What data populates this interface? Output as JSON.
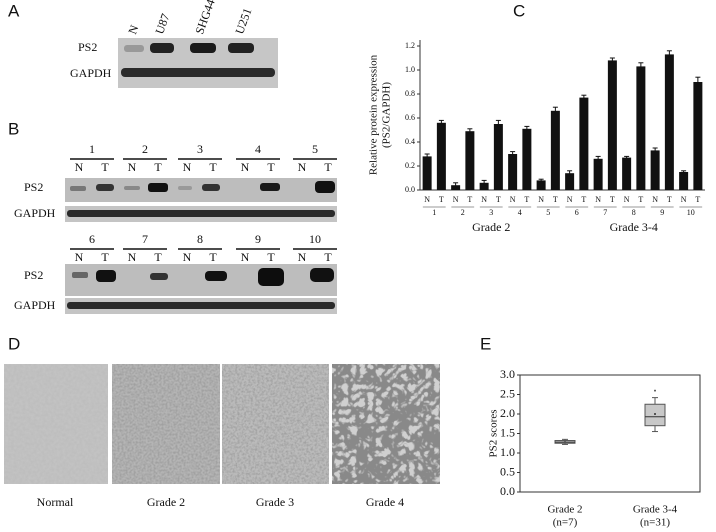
{
  "panels": {
    "a": {
      "letter": "A",
      "columns": [
        "N",
        "U87",
        "SHG44",
        "U251"
      ],
      "rows": [
        "PS2",
        "GAPDH"
      ]
    },
    "b": {
      "letter": "B",
      "top_samples": [
        "1",
        "2",
        "3",
        "4",
        "5"
      ],
      "bottom_samples": [
        "6",
        "7",
        "8",
        "9",
        "10"
      ],
      "lane_labels": [
        "N",
        "T"
      ],
      "rows": [
        "PS2",
        "GAPDH"
      ]
    },
    "c": {
      "letter": "C"
    },
    "d": {
      "letter": "D",
      "captions": [
        "Normal",
        "Grade 2",
        "Grade 3",
        "Grade 4"
      ]
    },
    "e": {
      "letter": "E"
    }
  },
  "chart_data": [
    {
      "type": "bar",
      "ylabel": [
        "Relative protein expression",
        "(PS2/GAPDH)"
      ],
      "categories": [
        "N",
        "T",
        "N",
        "T",
        "N",
        "T",
        "N",
        "T",
        "N",
        "T",
        "N",
        "T",
        "N",
        "T",
        "N",
        "T",
        "N",
        "T",
        "N",
        "T"
      ],
      "values": [
        0.28,
        0.56,
        0.04,
        0.49,
        0.06,
        0.55,
        0.3,
        0.51,
        0.08,
        0.66,
        0.14,
        0.77,
        0.26,
        1.08,
        0.27,
        1.03,
        0.33,
        1.13,
        0.15,
        0.9
      ],
      "errors": [
        0.02,
        0.02,
        0.02,
        0.02,
        0.02,
        0.03,
        0.02,
        0.02,
        0.01,
        0.03,
        0.02,
        0.02,
        0.02,
        0.02,
        0.01,
        0.03,
        0.02,
        0.03,
        0.01,
        0.04
      ],
      "sample_labels": [
        "1",
        "2",
        "3",
        "4",
        "5",
        "6",
        "7",
        "8",
        "9",
        "10"
      ],
      "grade_labels": [
        "Grade 2",
        "Grade 3-4"
      ],
      "color": "#111111",
      "ylim": [
        0,
        1.25
      ],
      "yticks": [
        {
          "value": 0,
          "label": "0.0"
        },
        0.2,
        0.4,
        0.6,
        0.8,
        {
          "value": 1,
          "label": "1.0"
        },
        1.2
      ]
    },
    {
      "type": "box",
      "ylabel": "PS2 scores",
      "categories": [
        "Grade 2",
        "Grade 3-4"
      ],
      "n_labels": [
        "(n=7)",
        "(n=31)"
      ],
      "boxes": [
        {
          "min": 1.22,
          "q1": 1.25,
          "median": 1.28,
          "q3": 1.32,
          "max": 1.35,
          "mean": 1.28,
          "outliers": []
        },
        {
          "min": 1.55,
          "q1": 1.7,
          "median": 1.93,
          "q3": 2.25,
          "max": 2.42,
          "mean": 2.0,
          "outliers": [
            2.6
          ]
        }
      ],
      "color": "#c8c8c8",
      "ylim": [
        0,
        3
      ],
      "yticks": [
        {
          "value": 0,
          "label": "0.0"
        },
        0.5,
        {
          "value": 1,
          "label": "1.0"
        },
        1.5,
        {
          "value": 2,
          "label": "2.0"
        },
        2.5,
        {
          "value": 3,
          "label": "3.0"
        }
      ]
    }
  ]
}
